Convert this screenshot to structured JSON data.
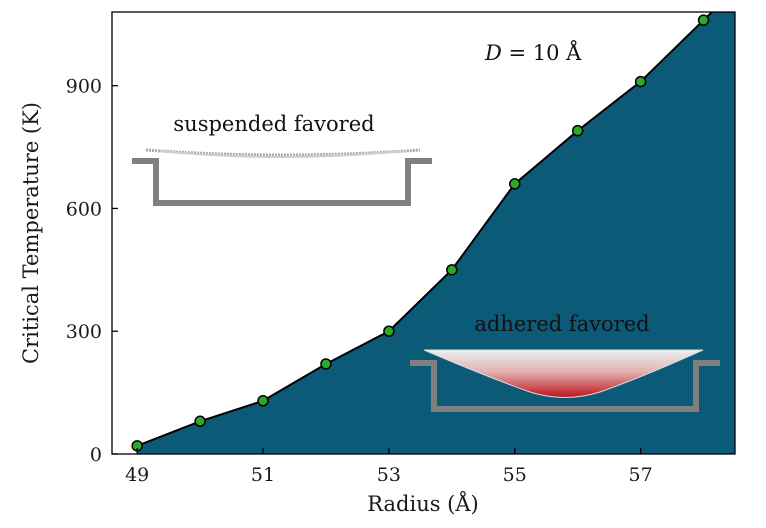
{
  "chart_data": {
    "type": "area",
    "xlabel": "Radius (Å)",
    "ylabel": "Critical Temperature (K)",
    "xlim": [
      48.6,
      58.5
    ],
    "ylim": [
      0,
      1080
    ],
    "xticks": [
      49,
      51,
      53,
      55,
      57
    ],
    "yticks": [
      0,
      300,
      600,
      900
    ],
    "grid": false,
    "series": [
      {
        "x": [
          49,
          50,
          51,
          52,
          53,
          54,
          55,
          56,
          57,
          58
        ],
        "y": [
          20,
          80,
          130,
          220,
          300,
          450,
          660,
          790,
          910,
          1060
        ]
      }
    ],
    "annotations": {
      "d_param": {
        "var": "D",
        "text": " = 10 Å"
      },
      "upper_region": "suspended favored",
      "lower_region": "adhered favored"
    },
    "colors": {
      "fill": "#0b5a77",
      "line": "#000000",
      "marker": "#2ea82a",
      "trench": "#808080"
    }
  }
}
